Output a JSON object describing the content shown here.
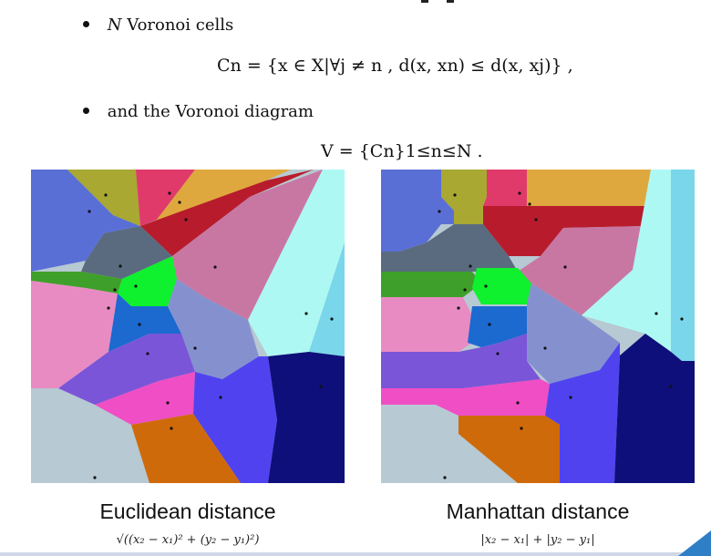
{
  "bullets": {
    "item1_symbol": "N",
    "item1_text": "Voronoi cells",
    "item2_text": "and the Voronoi diagram"
  },
  "equations": {
    "cell_definition": "Cn = {x ∈ X|∀j ≠ n , d(x, xn) ≤ d(x, xj)} ,",
    "diagram_definition": "V = {Cn}1≤n≤N ."
  },
  "panels": [
    {
      "caption": "Euclidean distance",
      "formula": "√((x₂ − x₁)² + (y₂ − y₁)²)"
    },
    {
      "caption": "Manhattan distance",
      "formula": "|x₂ − x₁| + |y₂ − y₁|"
    }
  ],
  "colors": {
    "blue_top_left": "#5a6fd6",
    "olive": "#a8a832",
    "pink_red": "#e03a6a",
    "gold": "#dfa83e",
    "crimson": "#b81c2c",
    "mauve": "#c877a3",
    "slate": "#5a6b80",
    "green": "#3ea02a",
    "bright_green": "#0ff02e",
    "light_cyan": "#aef8f4",
    "sky": "#7ad6ea",
    "pink": "#e98bc3",
    "royal_blue": "#1c69d0",
    "periwinkle": "#8591cf",
    "violet": "#7a55d8",
    "magenta": "#ef4ec4",
    "blue": "#5043ef",
    "navy": "#0e0f7a",
    "grey_blue": "#b7c9d2",
    "orange": "#cf6a0a",
    "accent": "#2f7fc7"
  }
}
